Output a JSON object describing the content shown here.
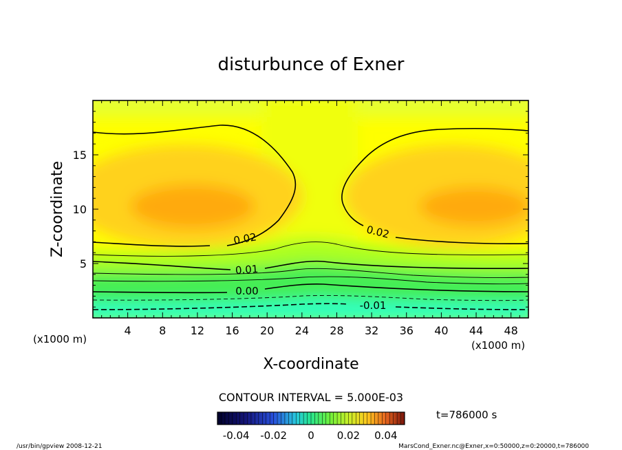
{
  "chart_data": {
    "type": "heatmap",
    "title": "disturbunce of Exner",
    "xlabel": "X-coordinate",
    "ylabel": "Z-coordinate",
    "x_unit_left": "(x1000 m)",
    "x_unit_right": "(x1000 m)",
    "xlim": [
      0,
      50
    ],
    "ylim": [
      0,
      20
    ],
    "xticks": [
      "4",
      "8",
      "12",
      "16",
      "20",
      "24",
      "28",
      "32",
      "36",
      "40",
      "44",
      "48"
    ],
    "yticks": [
      "5",
      "10",
      "15"
    ],
    "contour_labels": [
      "0.02",
      "0.02",
      "0.01",
      "0.00",
      "-0.01"
    ],
    "contour_interval_text": "CONTOUR INTERVAL = 5.000E-03",
    "time_text": "t=786000 s",
    "colorbar_ticks": [
      "-0.04",
      "-0.02",
      "0",
      "0.02",
      "0.04"
    ],
    "colorbar_range": [
      -0.05,
      0.05
    ],
    "footer_left": "/usr/bin/gpview   2008-12-21",
    "footer_right": "MarsCond_Exner.nc@Exner,x=0:50000,z=0:20000,t=786000",
    "field_description": {
      "max_value_approx": 0.03,
      "max_locations_x_km": [
        11,
        44
      ],
      "max_location_z_km": 10,
      "min_value_approx": -0.02,
      "min_location_z_km": 0
    },
    "colors": {
      "cyan": "#33ffcc",
      "green": "#00d060",
      "yellow": "#ffff00",
      "orange": "#ff9900"
    }
  }
}
